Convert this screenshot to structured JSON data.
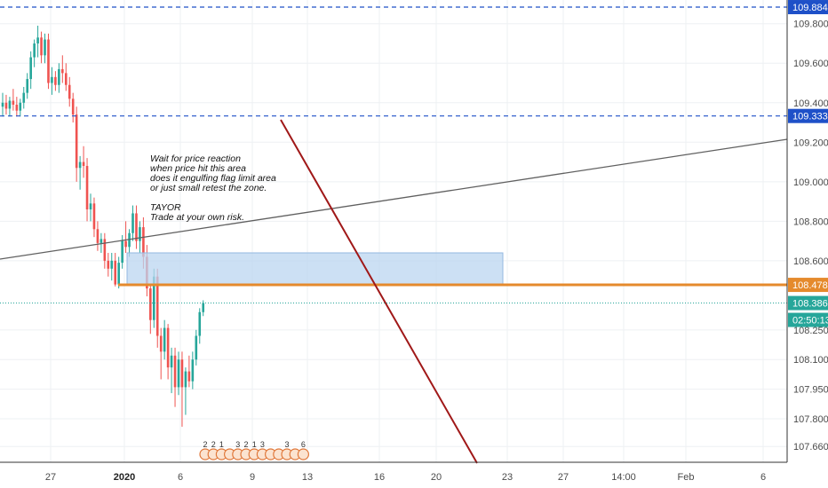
{
  "chart_data": {
    "type": "candlestick",
    "ylim": [
      107.58,
      109.92
    ],
    "y_ticks": [
      "109.800",
      "109.600",
      "109.400",
      "109.200",
      "109.000",
      "108.800",
      "108.600",
      "108.250",
      "108.100",
      "107.950",
      "107.800",
      "107.660"
    ],
    "x_ticks": [
      "27",
      "2020",
      "6",
      "9",
      "13",
      "16",
      "20",
      "23",
      "27",
      "14:00",
      "Feb",
      "6"
    ],
    "price_labels": [
      {
        "label": "109.884",
        "value": 109.884,
        "color": "#1e50c8"
      },
      {
        "label": "109.333",
        "value": 109.333,
        "color": "#1e50c8"
      },
      {
        "label": "108.478",
        "value": 108.478,
        "color": "#e58a2c"
      },
      {
        "label": "108.386",
        "value": 108.386,
        "color": "#26a69a"
      },
      {
        "label": "02:50:13",
        "value": 108.3,
        "color": "#26a69a"
      }
    ],
    "note": {
      "lines": [
        "Wait for price reaction",
        "when price hit this area",
        "does it engulfing flag limit area",
        "or just small retest the zone.",
        "",
        "TAYOR",
        "Trade at your own risk."
      ]
    },
    "zone": {
      "low": 108.478,
      "high": 108.64
    },
    "candles": [
      {
        "o": 109.38,
        "h": 109.45,
        "l": 109.33,
        "c": 109.4
      },
      {
        "o": 109.4,
        "h": 109.44,
        "l": 109.34,
        "c": 109.37
      },
      {
        "o": 109.37,
        "h": 109.43,
        "l": 109.33,
        "c": 109.41
      },
      {
        "o": 109.41,
        "h": 109.47,
        "l": 109.36,
        "c": 109.39
      },
      {
        "o": 109.39,
        "h": 109.43,
        "l": 109.33,
        "c": 109.36
      },
      {
        "o": 109.36,
        "h": 109.42,
        "l": 109.33,
        "c": 109.4
      },
      {
        "o": 109.4,
        "h": 109.48,
        "l": 109.37,
        "c": 109.45
      },
      {
        "o": 109.45,
        "h": 109.55,
        "l": 109.42,
        "c": 109.52
      },
      {
        "o": 109.52,
        "h": 109.66,
        "l": 109.47,
        "c": 109.63
      },
      {
        "o": 109.63,
        "h": 109.72,
        "l": 109.58,
        "c": 109.7
      },
      {
        "o": 109.7,
        "h": 109.79,
        "l": 109.63,
        "c": 109.73
      },
      {
        "o": 109.73,
        "h": 109.76,
        "l": 109.6,
        "c": 109.64
      },
      {
        "o": 109.64,
        "h": 109.75,
        "l": 109.6,
        "c": 109.72
      },
      {
        "o": 109.72,
        "h": 109.75,
        "l": 109.47,
        "c": 109.5
      },
      {
        "o": 109.5,
        "h": 109.58,
        "l": 109.44,
        "c": 109.53
      },
      {
        "o": 109.53,
        "h": 109.56,
        "l": 109.46,
        "c": 109.49
      },
      {
        "o": 109.49,
        "h": 109.6,
        "l": 109.45,
        "c": 109.57
      },
      {
        "o": 109.57,
        "h": 109.64,
        "l": 109.5,
        "c": 109.55
      },
      {
        "o": 109.55,
        "h": 109.6,
        "l": 109.46,
        "c": 109.49
      },
      {
        "o": 109.49,
        "h": 109.53,
        "l": 109.38,
        "c": 109.42
      },
      {
        "o": 109.42,
        "h": 109.45,
        "l": 109.3,
        "c": 109.34
      },
      {
        "o": 109.34,
        "h": 109.38,
        "l": 109.0,
        "c": 109.07
      },
      {
        "o": 109.07,
        "h": 109.13,
        "l": 108.96,
        "c": 109.1
      },
      {
        "o": 109.1,
        "h": 109.18,
        "l": 109.02,
        "c": 109.08
      },
      {
        "o": 109.08,
        "h": 109.12,
        "l": 108.8,
        "c": 108.86
      },
      {
        "o": 108.86,
        "h": 108.94,
        "l": 108.8,
        "c": 108.89
      },
      {
        "o": 108.89,
        "h": 108.92,
        "l": 108.72,
        "c": 108.76
      },
      {
        "o": 108.76,
        "h": 108.8,
        "l": 108.65,
        "c": 108.69
      },
      {
        "o": 108.69,
        "h": 108.74,
        "l": 108.64,
        "c": 108.71
      },
      {
        "o": 108.71,
        "h": 108.74,
        "l": 108.56,
        "c": 108.6
      },
      {
        "o": 108.6,
        "h": 108.64,
        "l": 108.52,
        "c": 108.56
      },
      {
        "o": 108.56,
        "h": 108.64,
        "l": 108.5,
        "c": 108.6
      },
      {
        "o": 108.6,
        "h": 108.64,
        "l": 108.47,
        "c": 108.48
      },
      {
        "o": 108.48,
        "h": 108.62,
        "l": 108.46,
        "c": 108.59
      },
      {
        "o": 108.59,
        "h": 108.73,
        "l": 108.56,
        "c": 108.7
      },
      {
        "o": 108.7,
        "h": 108.8,
        "l": 108.64,
        "c": 108.67
      },
      {
        "o": 108.67,
        "h": 108.76,
        "l": 108.62,
        "c": 108.74
      },
      {
        "o": 108.74,
        "h": 108.88,
        "l": 108.7,
        "c": 108.84
      },
      {
        "o": 108.84,
        "h": 108.88,
        "l": 108.66,
        "c": 108.7
      },
      {
        "o": 108.7,
        "h": 108.8,
        "l": 108.64,
        "c": 108.77
      },
      {
        "o": 108.77,
        "h": 108.82,
        "l": 108.56,
        "c": 108.62
      },
      {
        "o": 108.62,
        "h": 108.68,
        "l": 108.42,
        "c": 108.46
      },
      {
        "o": 108.46,
        "h": 108.48,
        "l": 108.23,
        "c": 108.3
      },
      {
        "o": 108.3,
        "h": 108.56,
        "l": 108.26,
        "c": 108.52
      },
      {
        "o": 108.52,
        "h": 108.56,
        "l": 108.16,
        "c": 108.22
      },
      {
        "o": 108.22,
        "h": 108.26,
        "l": 108.0,
        "c": 108.14
      },
      {
        "o": 108.14,
        "h": 108.3,
        "l": 108.1,
        "c": 108.26
      },
      {
        "o": 108.26,
        "h": 108.28,
        "l": 108.0,
        "c": 108.06
      },
      {
        "o": 108.06,
        "h": 108.16,
        "l": 107.93,
        "c": 108.12
      },
      {
        "o": 108.12,
        "h": 108.16,
        "l": 107.86,
        "c": 107.96
      },
      {
        "o": 107.96,
        "h": 108.14,
        "l": 107.92,
        "c": 108.1
      },
      {
        "o": 108.1,
        "h": 108.14,
        "l": 107.76,
        "c": 107.96
      },
      {
        "o": 107.96,
        "h": 108.06,
        "l": 107.82,
        "c": 108.04
      },
      {
        "o": 108.04,
        "h": 108.12,
        "l": 107.96,
        "c": 107.99
      },
      {
        "o": 107.99,
        "h": 108.14,
        "l": 107.95,
        "c": 108.1
      },
      {
        "o": 108.1,
        "h": 108.25,
        "l": 108.07,
        "c": 108.22
      },
      {
        "o": 108.22,
        "h": 108.36,
        "l": 108.18,
        "c": 108.34
      },
      {
        "o": 108.34,
        "h": 108.4,
        "l": 108.32,
        "c": 108.386
      }
    ]
  },
  "events": {
    "glyphs": [
      "2",
      "2",
      "1",
      "",
      "3",
      "2",
      "1",
      "3",
      "",
      "",
      "3",
      "",
      "6"
    ]
  },
  "colors": {
    "up": "#26a69a",
    "down": "#ef5350",
    "zone": "#bbd5f0",
    "zone_border": "#93b8e0",
    "orange": "#e58a2c",
    "blue_dashed": "#1e50c8",
    "dark_red": "#a01818",
    "trend_gray": "#606060",
    "grid": "#eef0f3"
  }
}
